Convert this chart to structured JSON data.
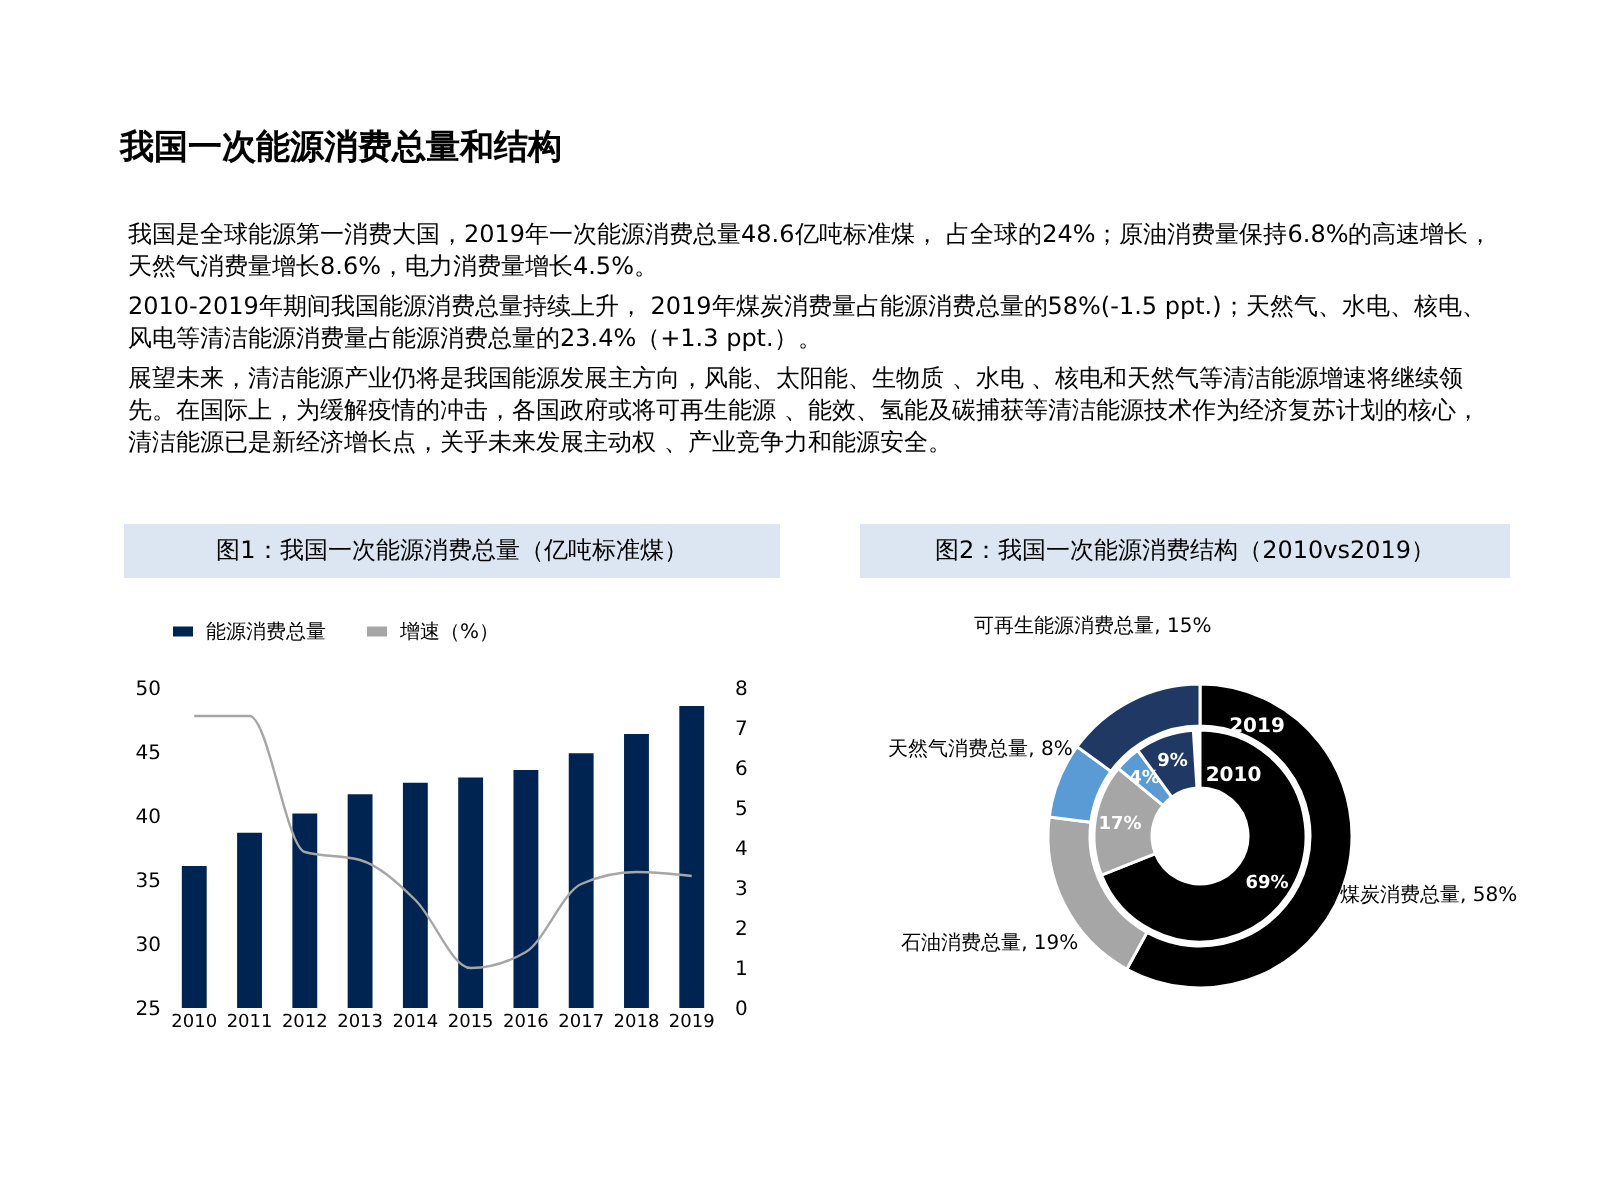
{
  "chart_data": [
    {
      "type": "other",
      "title": "我国一次能源消费总量和结构",
      "annotations": [
        "我国是全球能源第一消费大国，2019年一次能源消费总量48.6亿吨标准煤， 占全球的24%；原油消费量保持6.8%的高速增长，天然气消费量增长8.6%，电力消费量增长4.5%。",
        "2010-2019年期间我国能源消费总量持续上升，  2019年煤炭消费量占能源消费总量的58%(-1.5  ppt.)；天然气、水电、核电、风电等清洁能源消费量占能源消费总量的23.4%（+1.3  ppt.）。",
        "展望未来，清洁能源产业仍将是我国能源发展主方向，风能、太阳能、生物质 、水电 、核电和天然气等清洁能源增速将继续领先。在国际上，为缓解疫情的冲击，各国政府或将可再生能源 、能效、氢能及碳捕获等清洁能源技术作为经济复苏计划的核心，清洁能源已是新经济增长点，关乎未来发展主动权 、产业竞争力和能源安全。"
      ]
    },
    {
      "type": "bar",
      "title": "图1：我国一次能源消费总量（亿吨标准煤）",
      "categories": [
        "2010",
        "2011",
        "2012",
        "2013",
        "2014",
        "2015",
        "2016",
        "2017",
        "2018",
        "2019"
      ],
      "series": [
        {
          "name": "能源消费总量",
          "type": "bar",
          "color": "#002451",
          "values": [
            36.1,
            38.7,
            40.2,
            41.7,
            42.6,
            43.0,
            43.6,
            44.9,
            46.4,
            48.6
          ]
        },
        {
          "name": "增速（%）",
          "type": "line",
          "axis": "y2",
          "color": "#a6a6a6",
          "values": [
            7.3,
            7.3,
            3.9,
            3.7,
            2.7,
            1.0,
            1.4,
            3.1,
            3.4,
            3.3
          ]
        }
      ],
      "ylim": [
        25,
        50
      ],
      "yticks": [
        25,
        30,
        35,
        40,
        45,
        50
      ],
      "y2lim": [
        0,
        8
      ],
      "y2ticks": [
        0,
        1,
        2,
        3,
        4,
        5,
        6,
        7,
        8
      ],
      "legend": "top",
      "grid": false
    },
    {
      "type": "donut",
      "title": "图2：我国一次能源消费结构（2010vs2019）",
      "categories": [
        "煤炭消费总量",
        "石油消费总量",
        "天然气消费总量",
        "可再生能源消费总量"
      ],
      "colors": [
        "#000000",
        "#a6a6a6",
        "#5b9bd5",
        "#1f3864"
      ],
      "series": [
        {
          "name": "2019",
          "values": [
            58,
            19,
            8,
            15
          ],
          "value_labels": [
            "58%",
            "19%",
            "8%",
            "15%"
          ]
        },
        {
          "name": "2010",
          "values": [
            69,
            17,
            4,
            9
          ],
          "value_labels": [
            "69%",
            "17%",
            "4%",
            "9%"
          ]
        }
      ]
    }
  ]
}
